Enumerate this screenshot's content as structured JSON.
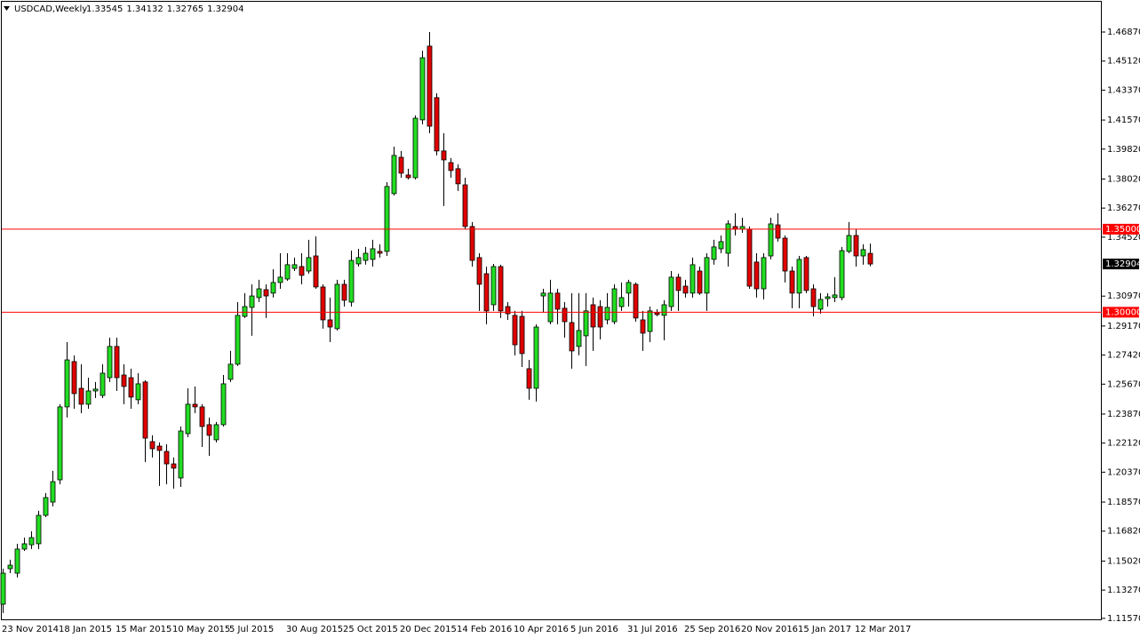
{
  "chart_data": {
    "type": "candlestick",
    "title": "USDCAD,Weekly",
    "categories": [
      "23 Nov 2014",
      null,
      null,
      null,
      null,
      null,
      null,
      null,
      "18 Jan 2015",
      null,
      null,
      null,
      null,
      null,
      null,
      null,
      "15 Mar 2015",
      null,
      null,
      null,
      null,
      null,
      null,
      null,
      "10 May 2015",
      null,
      null,
      null,
      null,
      null,
      null,
      null,
      "5 Jul 2015",
      null,
      null,
      null,
      null,
      null,
      null,
      null,
      "30 Aug 2015",
      null,
      null,
      null,
      null,
      null,
      null,
      null,
      "25 Oct 2015",
      null,
      null,
      null,
      null,
      null,
      null,
      null,
      "20 Dec 2015",
      null,
      null,
      null,
      null,
      null,
      null,
      null,
      "14 Feb 2016",
      null,
      null,
      null,
      null,
      null,
      null,
      null,
      "10 Apr 2016",
      null,
      null,
      null,
      null,
      null,
      null,
      null,
      "5 Jun 2016",
      null,
      null,
      null,
      null,
      null,
      null,
      null,
      "31 Jul 2016",
      null,
      null,
      null,
      null,
      null,
      null,
      null,
      "25 Sep 2016",
      null,
      null,
      null,
      null,
      null,
      null,
      null,
      "20 Nov 2016",
      null,
      null,
      null,
      null,
      null,
      null,
      null,
      "15 Jan 2017",
      null,
      null,
      null,
      null,
      null,
      null,
      null,
      "12 Mar 2017",
      null,
      null
    ],
    "open": [
      1.1242,
      1.1456,
      1.1429,
      1.1574,
      1.16,
      1.1606,
      1.1777,
      1.1857,
      1.1991,
      1.243,
      1.2703,
      1.2542,
      1.2446,
      1.2526,
      1.2499,
      1.2606,
      1.2794,
      1.2622,
      1.2606,
      1.2473,
      1.258,
      1.2221,
      1.2194,
      1.2162,
      1.2087,
      1.2002,
      1.2269,
      1.2446,
      1.243,
      1.2323,
      1.2232,
      1.2323,
      1.2596,
      1.2687,
      1.2975,
      1.3029,
      1.3088,
      1.3136,
      1.3115,
      1.3179,
      1.32,
      1.3264,
      1.3275,
      1.3248,
      1.3339,
      1.3152,
      1.2954,
      1.2901,
      1.3168,
      1.3061,
      1.3291,
      1.3312,
      1.3318,
      1.3366,
      1.3366,
      1.3714,
      1.3933,
      1.3826,
      1.381,
      1.4158,
      1.4602,
      1.4292,
      1.3971,
      1.3901,
      1.3864,
      1.3767,
      1.3516,
      1.3329,
      1.3232,
      1.3045,
      1.3275,
      1.3034,
      1.2981,
      1.2975,
      1.266,
      1.2542,
      1.3098,
      1.2943,
      1.3115,
      1.3024,
      1.2938,
      1.2794,
      1.2858,
      1.3045,
      1.3034,
      1.2954,
      1.2943,
      1.3034,
      1.3115,
      1.3168,
      1.2954,
      1.2884,
      1.2997,
      1.2981,
      1.3034,
      1.3211,
      1.3157,
      1.3115,
      1.3248,
      1.3115,
      1.3318,
      1.3382,
      1.3355,
      1.3516,
      1.35,
      1.35,
      1.3302,
      1.3141,
      1.3339,
      1.3526,
      1.3446,
      1.3248,
      1.3115,
      1.3329,
      1.3141,
      1.3018,
      1.3082,
      1.3088,
      1.3088,
      1.3366,
      1.3462,
      1.3339,
      1.33545
    ],
    "high": [
      1.1456,
      1.151,
      1.1606,
      1.1643,
      1.1681,
      1.1804,
      1.1911,
      1.2045,
      1.2446,
      1.282,
      1.274,
      1.2687,
      1.2606,
      1.258,
      1.2687,
      1.2847,
      1.2847,
      1.2687,
      1.266,
      1.2633,
      1.259,
      1.2259,
      1.2216,
      1.2205,
      1.2125,
      1.2312,
      1.2542,
      1.2553,
      1.2446,
      1.2366,
      1.2339,
      1.2622,
      1.2767,
      1.3061,
      1.3115,
      1.3168,
      1.3195,
      1.3168,
      1.3259,
      1.3355,
      1.3355,
      1.3329,
      1.3355,
      1.3436,
      1.3457,
      1.3168,
      1.3088,
      1.3195,
      1.3195,
      1.3371,
      1.3382,
      1.3393,
      1.3436,
      1.3409,
      1.3783,
      1.3997,
      1.3971,
      1.3864,
      1.4185,
      1.4575,
      1.4687,
      1.4318,
      1.4078,
      1.3928,
      1.389,
      1.381,
      1.3543,
      1.3355,
      1.3275,
      1.3291,
      1.3286,
      1.3061,
      1.3008,
      1.3008,
      1.2713,
      1.2927,
      1.3141,
      1.3195,
      1.3141,
      1.3061,
      1.3115,
      1.3115,
      1.3115,
      1.3088,
      1.3072,
      1.3115,
      1.3168,
      1.3179,
      1.3195,
      1.3179,
      1.3008,
      1.3034,
      1.3018,
      1.3072,
      1.3248,
      1.3232,
      1.3195,
      1.3329,
      1.3275,
      1.3355,
      1.3436,
      1.3462,
      1.3553,
      1.3596,
      1.3569,
      1.3516,
      1.3355,
      1.3355,
      1.3569,
      1.3596,
      1.3462,
      1.3275,
      1.3339,
      1.3339,
      1.3168,
      1.3115,
      1.3115,
      1.3211,
      1.3393,
      1.3543,
      1.35,
      1.3409,
      1.34132
    ],
    "low": [
      1.1189,
      1.1429,
      1.1403,
      1.1563,
      1.1574,
      1.1574,
      1.1766,
      1.1831,
      1.1964,
      1.2366,
      1.2419,
      1.2392,
      1.2419,
      1.2483,
      1.2483,
      1.258,
      1.2526,
      1.2446,
      1.2419,
      1.2446,
      1.2098,
      1.2125,
      1.1954,
      1.1964,
      1.1938,
      1.1948,
      1.2248,
      1.2392,
      1.2189,
      1.2135,
      1.2216,
      1.2312,
      1.258,
      1.2676,
      1.2965,
      1.2858,
      1.3061,
      1.2965,
      1.3088,
      1.3141,
      1.3189,
      1.3248,
      1.3168,
      1.3232,
      1.3141,
      1.2901,
      1.282,
      1.289,
      1.3034,
      1.3034,
      1.3275,
      1.3286,
      1.3275,
      1.3329,
      1.3339,
      1.3703,
      1.381,
      1.3799,
      1.3799,
      1.4131,
      1.4078,
      1.3944,
      1.3639,
      1.381,
      1.373,
      1.35,
      1.3275,
      1.3008,
      1.2927,
      1.3008,
      1.2965,
      1.2954,
      1.274,
      1.267,
      1.2473,
      1.2462,
      1.2997,
      1.2927,
      1.2927,
      1.2847,
      1.266,
      1.274,
      1.2676,
      1.2767,
      1.2836,
      1.2927,
      1.2927,
      1.3008,
      1.3034,
      1.2943,
      1.2767,
      1.282,
      1.2975,
      1.2831,
      1.3008,
      1.3008,
      1.3088,
      1.3088,
      1.3104,
      1.3008,
      1.3286,
      1.3355,
      1.3275,
      1.3462,
      1.3478,
      1.3141,
      1.3088,
      1.3077,
      1.3318,
      1.3425,
      1.3179,
      1.3024,
      1.3024,
      1.3115,
      1.2975,
      1.2991,
      1.3034,
      1.3061,
      1.3072,
      1.3355,
      1.3275,
      1.3286,
      1.32765
    ],
    "close": [
      1.1429,
      1.1477,
      1.1574,
      1.1606,
      1.1643,
      1.1777,
      1.1884,
      1.198,
      1.243,
      1.2713,
      1.251,
      1.2446,
      1.2526,
      1.2537,
      1.2633,
      1.2794,
      1.2606,
      1.2553,
      1.2489,
      1.2569,
      1.2242,
      1.2178,
      1.2168,
      1.2087,
      1.2061,
      1.2285,
      1.2446,
      1.243,
      1.2312,
      1.2259,
      1.2323,
      1.2569,
      1.2687,
      1.2981,
      1.3034,
      1.3098,
      1.3141,
      1.3098,
      1.3179,
      1.3211,
      1.3286,
      1.3286,
      1.3222,
      1.3329,
      1.3152,
      1.2954,
      1.2911,
      1.3168,
      1.3072,
      1.3312,
      1.3329,
      1.3355,
      1.3382,
      1.3355,
      1.3757,
      1.3944,
      1.3837,
      1.381,
      1.4168,
      1.4532,
      1.412,
      1.3971,
      1.3917,
      1.3853,
      1.3773,
      1.3516,
      1.3312,
      1.3168,
      1.3008,
      1.3275,
      1.3008,
      1.2991,
      1.2804,
      1.2751,
      1.2542,
      1.2911,
      1.3115,
      1.3115,
      1.3018,
      1.2943,
      1.2767,
      1.289,
      1.3008,
      1.2911,
      1.2911,
      1.3029,
      1.3141,
      1.3088,
      1.3179,
      1.2965,
      1.2874,
      1.3008,
      1.2986,
      1.3045,
      1.3211,
      1.3131,
      1.3115,
      1.3286,
      1.3115,
      1.3329,
      1.3393,
      1.3425,
      1.3532,
      1.35,
      1.3516,
      1.3157,
      1.3141,
      1.3329,
      1.3532,
      1.3446,
      1.3248,
      1.3115,
      1.3318,
      1.3131,
      1.3034,
      1.3077,
      1.3093,
      1.3104,
      1.3371,
      1.3462,
      1.3339,
      1.3377,
      1.32904
    ],
    "ylim": [
      1.1151,
      1.4869
    ],
    "yticks": [
      {
        "value": 1.1157,
        "label": "1.11570"
      },
      {
        "value": 1.1327,
        "label": "1.13270"
      },
      {
        "value": 1.1502,
        "label": "1.15020"
      },
      {
        "value": 1.1682,
        "label": "1.16820"
      },
      {
        "value": 1.1857,
        "label": "1.18570"
      },
      {
        "value": 1.2037,
        "label": "1.20370"
      },
      {
        "value": 1.2212,
        "label": "1.22120"
      },
      {
        "value": 1.2387,
        "label": "1.23870"
      },
      {
        "value": 1.2567,
        "label": "1.25670"
      },
      {
        "value": 1.2742,
        "label": "1.27420"
      },
      {
        "value": 1.2917,
        "label": "1.29170"
      },
      {
        "value": 1.3097,
        "label": "1.30970"
      },
      {
        "value": 1.3452,
        "label": "1.34520"
      },
      {
        "value": 1.3627,
        "label": "1.36270"
      },
      {
        "value": 1.3802,
        "label": "1.38020"
      },
      {
        "value": 1.3982,
        "label": "1.39820"
      },
      {
        "value": 1.4157,
        "label": "1.41570"
      },
      {
        "value": 1.4337,
        "label": "1.43370"
      },
      {
        "value": 1.4512,
        "label": "1.45120"
      },
      {
        "value": 1.4687,
        "label": "1.46870"
      }
    ],
    "levels": [
      {
        "value": 1.35,
        "label": "1.35000"
      },
      {
        "value": 1.3,
        "label": "1.30000"
      }
    ],
    "level_color": "#ff0000",
    "up_color": "#22dd22",
    "down_color": "#e00000",
    "grid": false
  }
}
